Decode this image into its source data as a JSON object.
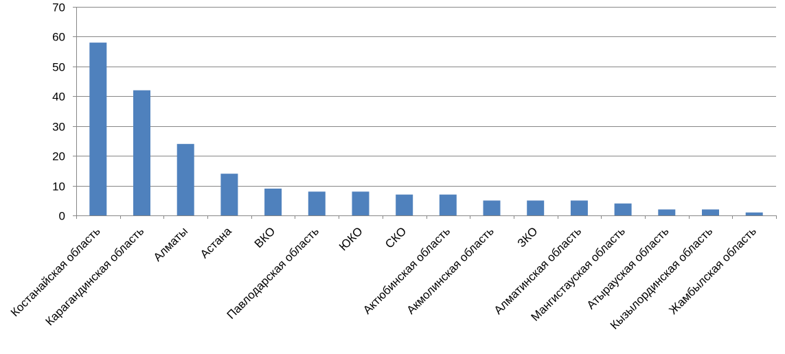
{
  "chart_data": {
    "type": "bar",
    "title": "",
    "xlabel": "",
    "ylabel": "",
    "ylim": [
      0,
      70
    ],
    "yticks": [
      0,
      10,
      20,
      30,
      40,
      50,
      60,
      70
    ],
    "grid": true,
    "legend": "none",
    "bar_color": "#4F81BD",
    "categories": [
      "Костанайская область",
      "Карагандинская  область",
      "Алматы",
      "Астана",
      "ВКО",
      "Павлодарская область",
      "ЮКО",
      "СКО",
      "Актюбинская  область",
      "Акмолинская область",
      "ЗКО",
      "Алматинская область",
      "Мангистауская область",
      "Атырауская область",
      "Кызылординская  область",
      "Жамбылская область"
    ],
    "values": [
      58,
      42,
      24,
      14,
      9,
      8,
      8,
      7,
      7,
      5,
      5,
      5,
      4,
      2,
      2,
      1
    ]
  }
}
